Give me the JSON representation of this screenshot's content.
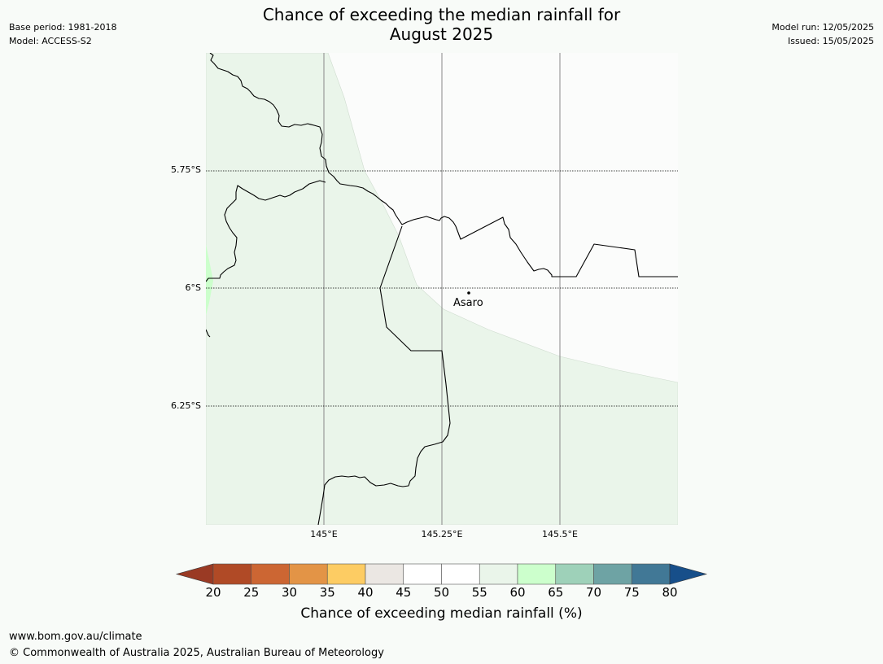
{
  "header": {
    "title_line1": "Chance of exceeding the median rainfall for",
    "title_line2": "August 2025",
    "base_period": "Base period: 1981-2018",
    "model": "Model: ACCESS-S2",
    "model_run": "Model run: 12/05/2025",
    "issued": "Issued: 15/05/2025"
  },
  "map": {
    "lat_labels": [
      "5.75°S",
      "6°S",
      "6.25°S"
    ],
    "lon_labels": [
      "145°E",
      "145.25°E",
      "145.5°E"
    ],
    "place": {
      "name": "Asaro"
    },
    "colors": {
      "land_fill_55_60": "#eaf5ea",
      "fill_60_65": "#ccffcc",
      "background": "#f8fbf8",
      "border": "#000000",
      "gridline": "#888888"
    }
  },
  "colorbar": {
    "title": "Chance of exceeding median rainfall (%)",
    "ticks": [
      "20",
      "25",
      "30",
      "35",
      "40",
      "45",
      "50",
      "55",
      "60",
      "65",
      "70",
      "75",
      "80"
    ],
    "colors": [
      "#b04a26",
      "#cc6633",
      "#e39446",
      "#fdcc63",
      "#ebe7e3",
      "#ffffff",
      "#ffffff",
      "#eaf5ea",
      "#ccffcc",
      "#9ed1b9",
      "#6ea3a4",
      "#417896"
    ],
    "under_color": "#9a3a24",
    "over_color": "#174f8a"
  },
  "footer": {
    "url": "www.bom.gov.au/climate",
    "copyright": "© Commonwealth of Australia 2025, Australian Bureau of Meteorology"
  }
}
